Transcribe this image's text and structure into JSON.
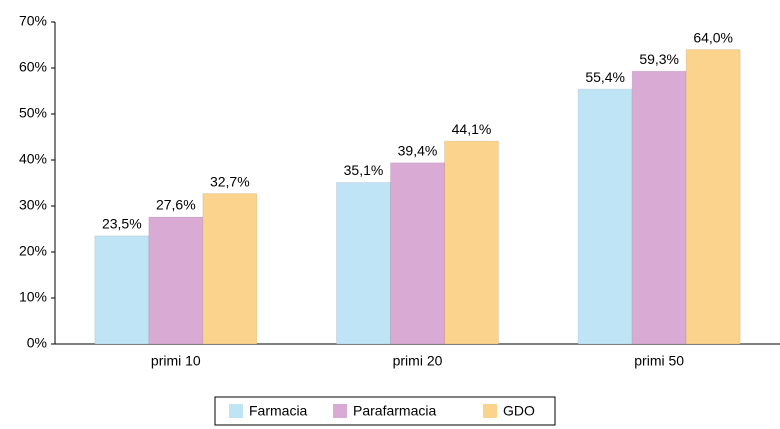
{
  "chart_data": {
    "type": "bar",
    "categories": [
      "primi 10",
      "primi 20",
      "primi 50"
    ],
    "series": [
      {
        "name": "Farmacia",
        "color": "#bfe4f6",
        "values": [
          23.5,
          35.1,
          55.4
        ],
        "value_labels": [
          "23,5%",
          "35,1%",
          "55,4%"
        ]
      },
      {
        "name": "Parafarmacia",
        "color": "#d8aad4",
        "values": [
          27.6,
          39.4,
          59.3
        ],
        "value_labels": [
          "27,6%",
          "39,4%",
          "59,3%"
        ]
      },
      {
        "name": "GDO",
        "color": "#fbd38d",
        "values": [
          32.7,
          44.1,
          64.0
        ],
        "value_labels": [
          "32,7%",
          "44,1%",
          "64,0%"
        ]
      }
    ],
    "ylim": [
      0,
      70
    ],
    "yticks": [
      {
        "value": 0,
        "label": "0%"
      },
      {
        "value": 10,
        "label": "10%"
      },
      {
        "value": 20,
        "label": "20%"
      },
      {
        "value": 30,
        "label": "30%"
      },
      {
        "value": 40,
        "label": "40%"
      },
      {
        "value": 50,
        "label": "50%"
      },
      {
        "value": 60,
        "label": "60%"
      },
      {
        "value": 70,
        "label": "70%"
      }
    ],
    "grid": false,
    "legend": "bottom"
  }
}
